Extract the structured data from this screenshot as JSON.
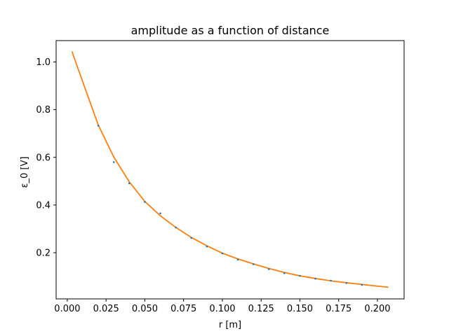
{
  "chart_data": {
    "type": "scatter",
    "title": "amplitude as a function of distance",
    "xlabel": "r [m]",
    "ylabel": "ε_0 [V]",
    "xlim": [
      -0.0072,
      0.2172
    ],
    "ylim": [
      0.0063,
      1.0895
    ],
    "grid": false,
    "legend": "none",
    "x_ticks": [
      0.0,
      0.025,
      0.05,
      0.075,
      0.1,
      0.125,
      0.15,
      0.175,
      0.2
    ],
    "x_tick_labels": [
      "0.000",
      "0.025",
      "0.050",
      "0.075",
      "0.100",
      "0.125",
      "0.150",
      "0.175",
      "0.200"
    ],
    "y_ticks": [
      0.2,
      0.4,
      0.6,
      0.8,
      1.0
    ],
    "y_tick_labels": [
      "0.2",
      "0.4",
      "0.6",
      "0.8",
      "1.0"
    ],
    "series": [
      {
        "kind": "points",
        "color": "#1f77b4",
        "x": [
          0.02,
          0.03,
          0.04,
          0.05,
          0.06,
          0.07,
          0.08,
          0.09,
          0.1,
          0.11,
          0.12,
          0.13,
          0.14,
          0.15,
          0.16,
          0.17,
          0.18,
          0.19
        ],
        "y": [
          0.733,
          0.58,
          0.491,
          0.413,
          0.365,
          0.306,
          0.262,
          0.226,
          0.197,
          0.171,
          0.152,
          0.131,
          0.114,
          0.103,
          0.091,
          0.083,
          0.073,
          0.065
        ]
      },
      {
        "kind": "line",
        "color": "#ff7f0e",
        "x": [
          0.003,
          0.01,
          0.02,
          0.03,
          0.04,
          0.05,
          0.06,
          0.07,
          0.08,
          0.09,
          0.1,
          0.11,
          0.12,
          0.13,
          0.14,
          0.15,
          0.16,
          0.17,
          0.18,
          0.19,
          0.2,
          0.207
        ],
        "y": [
          1.044,
          0.916,
          0.735,
          0.601,
          0.497,
          0.415,
          0.355,
          0.306,
          0.264,
          0.229,
          0.198,
          0.174,
          0.153,
          0.134,
          0.117,
          0.103,
          0.092,
          0.082,
          0.074,
          0.067,
          0.06,
          0.055
        ]
      }
    ]
  }
}
